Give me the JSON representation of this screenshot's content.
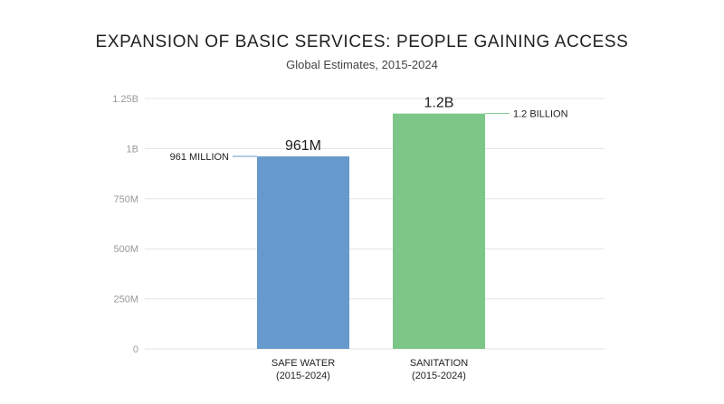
{
  "chart_data": {
    "type": "bar",
    "title": "EXPANSION OF BASIC SERVICES: PEOPLE GAINING ACCESS",
    "subtitle": "Global Estimates, 2015-2024",
    "xlabel": "",
    "ylabel": "",
    "ylim": [
      0,
      1250000000
    ],
    "yticks": [
      {
        "value": 0,
        "label": "0"
      },
      {
        "value": 250000000,
        "label": "250M"
      },
      {
        "value": 500000000,
        "label": "500M"
      },
      {
        "value": 750000000,
        "label": "750M"
      },
      {
        "value": 1000000000,
        "label": "1B"
      },
      {
        "value": 1250000000,
        "label": "1.25B"
      }
    ],
    "grid": true,
    "categories": [
      [
        "SAFE WATER",
        "(2015-2024)"
      ],
      [
        "SANITATION",
        "(2015-2024)"
      ]
    ],
    "values": [
      961000000,
      1175000000
    ],
    "colors": [
      "#6699cc",
      "#7cc687"
    ],
    "data_labels": [
      "961M",
      "1.2B"
    ],
    "annotations": [
      {
        "text": "961 MILLION",
        "side": "left"
      },
      {
        "text": "1.2 BILLION",
        "side": "right"
      }
    ]
  }
}
